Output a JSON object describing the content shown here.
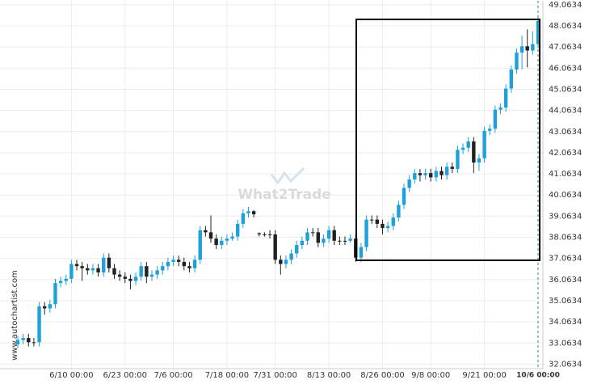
{
  "chart_data": {
    "type": "candlestick",
    "watermark": "What2Trade",
    "side_text": "www.autochartist.com",
    "categories": [
      null,
      null,
      null,
      null,
      null,
      null,
      null,
      null,
      null,
      null,
      "6/10 00:00",
      null,
      null,
      null,
      null,
      null,
      null,
      null,
      null,
      null,
      "6/23 00:00",
      null,
      null,
      null,
      null,
      null,
      null,
      null,
      null,
      "7/6 00:00",
      null,
      null,
      null,
      null,
      null,
      null,
      null,
      null,
      null,
      "7/18 00:00",
      null,
      null,
      null,
      null,
      null,
      null,
      null,
      null,
      "7/31 00:00",
      null,
      null,
      null,
      null,
      null,
      null,
      null,
      null,
      null,
      "8/13 00:00",
      null,
      null,
      null,
      null,
      null,
      null,
      null,
      null,
      null,
      "8/26 00:00",
      null,
      null,
      null,
      null,
      null,
      null,
      null,
      null,
      "9/8 00:00",
      null,
      null,
      null,
      null,
      null,
      null,
      null,
      null,
      null,
      "9/21 00:00",
      null,
      null,
      null,
      null,
      null,
      null,
      null,
      null,
      null,
      "10/6 00:00"
    ],
    "open": [
      33.0,
      33.2,
      33.3,
      33.1,
      33.1,
      34.8,
      34.7,
      34.9,
      35.9,
      36.0,
      36.1,
      36.8,
      36.7,
      36.6,
      36.5,
      36.6,
      36.4,
      37.1,
      36.6,
      36.3,
      36.2,
      36.1,
      36.0,
      36.2,
      36.7,
      36.2,
      36.3,
      36.5,
      36.7,
      36.9,
      37.0,
      36.9,
      36.7,
      36.6,
      37.0,
      38.4,
      38.3,
      38.0,
      37.7,
      37.9,
      38.0,
      38.1,
      38.7,
      39.2,
      39.3,
      38.25,
      38.2,
      38.2,
      38.2,
      37.0,
      36.8,
      37.0,
      37.3,
      37.7,
      37.9,
      38.3,
      38.3,
      37.8,
      38.0,
      38.4,
      37.9,
      37.9,
      37.9,
      38.0,
      37.1,
      37.6,
      38.9,
      38.9,
      38.7,
      38.5,
      38.6,
      39.0,
      39.6,
      40.4,
      40.8,
      41.1,
      41.0,
      41.1,
      40.9,
      41.2,
      41.0,
      41.4,
      41.3,
      42.2,
      42.3,
      42.6,
      41.6,
      41.8,
      43.1,
      43.2,
      44.1,
      44.2,
      45.1,
      46.0,
      46.8,
      47.1,
      46.9,
      47.2
    ],
    "high": [
      33.4,
      33.5,
      33.5,
      33.3,
      35.0,
      35.0,
      35.1,
      36.1,
      36.2,
      36.3,
      37.0,
      37.0,
      36.9,
      36.8,
      36.8,
      36.8,
      37.3,
      37.3,
      36.8,
      36.5,
      36.4,
      36.3,
      36.4,
      36.9,
      36.9,
      36.5,
      36.7,
      36.9,
      37.1,
      37.2,
      37.2,
      37.1,
      36.9,
      37.2,
      38.6,
      38.6,
      39.1,
      38.2,
      38.1,
      38.2,
      38.3,
      38.9,
      39.4,
      39.5,
      39.35,
      38.3,
      38.3,
      38.4,
      38.4,
      37.2,
      37.2,
      37.5,
      37.9,
      38.1,
      38.5,
      38.5,
      38.5,
      38.2,
      38.6,
      38.6,
      38.1,
      38.1,
      38.2,
      38.2,
      37.8,
      39.1,
      39.1,
      39.1,
      38.9,
      38.8,
      39.2,
      39.8,
      40.6,
      41.0,
      41.3,
      41.3,
      41.3,
      41.3,
      41.4,
      41.4,
      41.6,
      41.6,
      42.4,
      42.5,
      42.8,
      42.8,
      42.0,
      43.3,
      43.4,
      44.3,
      44.4,
      45.3,
      46.2,
      47.0,
      47.6,
      47.9,
      47.8,
      48.5
    ],
    "low": [
      32.8,
      33.0,
      32.9,
      32.9,
      32.9,
      34.4,
      34.5,
      34.7,
      35.7,
      35.8,
      35.9,
      36.5,
      36.0,
      36.3,
      36.3,
      36.2,
      36.2,
      36.4,
      36.1,
      36.0,
      35.9,
      35.6,
      35.8,
      36.0,
      35.9,
      36.0,
      36.1,
      36.3,
      36.5,
      36.7,
      36.7,
      36.5,
      36.4,
      36.4,
      36.8,
      38.1,
      37.8,
      37.5,
      37.5,
      37.7,
      37.9,
      37.9,
      38.5,
      39.0,
      39.0,
      38.1,
      38.1,
      38.0,
      36.8,
      36.3,
      36.6,
      36.8,
      37.1,
      37.5,
      37.7,
      38.1,
      37.6,
      37.6,
      37.8,
      37.7,
      37.7,
      37.7,
      37.8,
      36.9,
      36.9,
      37.4,
      38.7,
      38.5,
      38.2,
      38.3,
      38.4,
      38.8,
      39.4,
      40.2,
      40.6,
      40.7,
      40.8,
      40.7,
      40.7,
      40.8,
      40.8,
      41.1,
      41.1,
      42.0,
      42.1,
      41.1,
      41.2,
      41.6,
      42.9,
      43.0,
      43.9,
      44.0,
      44.9,
      45.8,
      46.0,
      46.1,
      46.7,
      47.0
    ],
    "close": [
      33.2,
      33.3,
      33.1,
      33.1,
      34.8,
      34.7,
      34.9,
      35.9,
      36.0,
      36.1,
      36.8,
      36.7,
      36.6,
      36.5,
      36.6,
      36.4,
      37.1,
      36.6,
      36.3,
      36.2,
      36.1,
      36.0,
      36.2,
      36.7,
      36.2,
      36.3,
      36.5,
      36.7,
      36.9,
      37.0,
      36.9,
      36.7,
      36.6,
      37.0,
      38.4,
      38.3,
      38.0,
      37.7,
      37.9,
      38.0,
      38.1,
      38.7,
      39.2,
      39.3,
      39.15,
      38.2,
      38.2,
      38.2,
      37.0,
      36.8,
      37.0,
      37.3,
      37.7,
      37.9,
      38.3,
      38.3,
      37.8,
      38.0,
      38.4,
      37.9,
      37.9,
      37.9,
      38.0,
      37.1,
      37.6,
      38.9,
      38.9,
      38.7,
      38.5,
      38.6,
      39.0,
      39.6,
      40.4,
      40.8,
      41.1,
      41.0,
      41.1,
      40.9,
      41.2,
      41.0,
      41.4,
      41.3,
      42.2,
      42.3,
      42.6,
      41.6,
      41.8,
      43.1,
      43.2,
      44.1,
      44.2,
      45.1,
      46.0,
      46.8,
      47.1,
      46.9,
      47.2,
      48.3
    ],
    "up_color": "#1ea0da",
    "down_color": "#222222",
    "ylim": [
      31.85,
      49.25
    ],
    "yticks": [
      32.0634,
      33.0634,
      34.0634,
      35.0634,
      36.0634,
      37.0634,
      38.0634,
      39.0634,
      40.0634,
      41.0634,
      42.0634,
      43.0634,
      44.0634,
      45.0634,
      46.0634,
      47.0634,
      48.0634,
      49.0634
    ],
    "grid": true
  }
}
